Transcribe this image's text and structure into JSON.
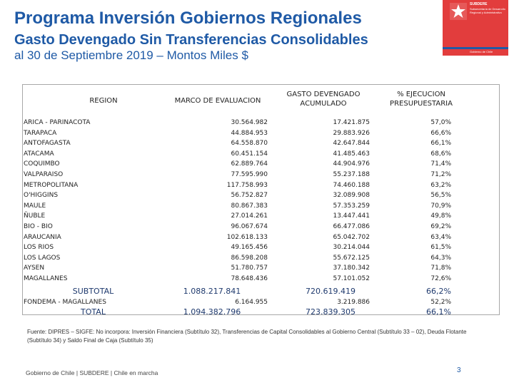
{
  "header": {
    "title": "Programa Inversión Gobiernos Regionales",
    "subtitle": "Gasto Devengado Sin Transferencias Consolidables",
    "date_line": "al 30 de Septiembre 2019 – Montos Miles $"
  },
  "logo": {
    "org_name": "SUBDERE",
    "org_sub": "Subsecretaría de Desarrollo Regional y Administrativo",
    "gov_text": "Gobierno de Chile"
  },
  "table": {
    "headers": {
      "region": "REGION",
      "marco": "MARCO DE EVALUACION",
      "gasto": "GASTO DEVENGADO ACUMULADO",
      "pct": "% EJECUCION PRESUPUESTARIA"
    },
    "rows": [
      {
        "region": "ARICA - PARINACOTA",
        "marco": "30.564.982",
        "gasto": "17.421.875",
        "pct": "57,0%"
      },
      {
        "region": "TARAPACA",
        "marco": "44.884.953",
        "gasto": "29.883.926",
        "pct": "66,6%"
      },
      {
        "region": "ANTOFAGASTA",
        "marco": "64.558.870",
        "gasto": "42.647.844",
        "pct": "66,1%"
      },
      {
        "region": "ATACAMA",
        "marco": "60.451.154",
        "gasto": "41.485.463",
        "pct": "68,6%"
      },
      {
        "region": "COQUIMBO",
        "marco": "62.889.764",
        "gasto": "44.904.976",
        "pct": "71,4%"
      },
      {
        "region": "VALPARAISO",
        "marco": "77.595.990",
        "gasto": "55.237.188",
        "pct": "71,2%"
      },
      {
        "region": "METROPOLITANA",
        "marco": "117.758.993",
        "gasto": "74.460.188",
        "pct": "63,2%"
      },
      {
        "region": "O'HIGGINS",
        "marco": "56.752.827",
        "gasto": "32.089.908",
        "pct": "56,5%"
      },
      {
        "region": "MAULE",
        "marco": "80.867.383",
        "gasto": "57.353.259",
        "pct": "70,9%"
      },
      {
        "region": "ÑUBLE",
        "marco": "27.014.261",
        "gasto": "13.447.441",
        "pct": "49,8%"
      },
      {
        "region": "BIO - BIO",
        "marco": "96.067.674",
        "gasto": "66.477.086",
        "pct": "69,2%"
      },
      {
        "region": "ARAUCANIA",
        "marco": "102.618.133",
        "gasto": "65.042.702",
        "pct": "63,4%"
      },
      {
        "region": "LOS RIOS",
        "marco": "49.165.456",
        "gasto": "30.214.044",
        "pct": "61,5%"
      },
      {
        "region": "LOS LAGOS",
        "marco": "86.598.208",
        "gasto": "55.672.125",
        "pct": "64,3%"
      },
      {
        "region": "AYSEN",
        "marco": "51.780.757",
        "gasto": "37.180.342",
        "pct": "71,8%"
      },
      {
        "region": "MAGALLANES",
        "marco": "78.648.436",
        "gasto": "57.101.052",
        "pct": "72,6%"
      }
    ],
    "subtotal": {
      "region": "SUBTOTAL",
      "marco": "1.088.217.841",
      "gasto": "720.619.419",
      "pct": "66,2%"
    },
    "fondema": {
      "region": "FONDEMA - MAGALLANES",
      "marco": "6.164.955",
      "gasto": "3.219.886",
      "pct": "52,2%"
    },
    "total": {
      "region": "TOTAL",
      "marco": "1.094.382.796",
      "gasto": "723.839.305",
      "pct": "66,1%"
    }
  },
  "footnote": "Fuente: DIPRES – SIGFE: No incorpora: Inversión Financiera (Subtítulo 32), Transferencias de Capital Consolidables al Gobierno Central (Subtítulo 33 – 02), Deuda Flotante (Subtítulo 34) y Saldo Final de Caja (Subtítulo 35)",
  "footer": {
    "left": "Gobierno de Chile | SUBDERE | Chile en marcha",
    "page": "3"
  },
  "colors": {
    "accent": "#1f5aa6",
    "logo_red": "#e23d3d"
  }
}
